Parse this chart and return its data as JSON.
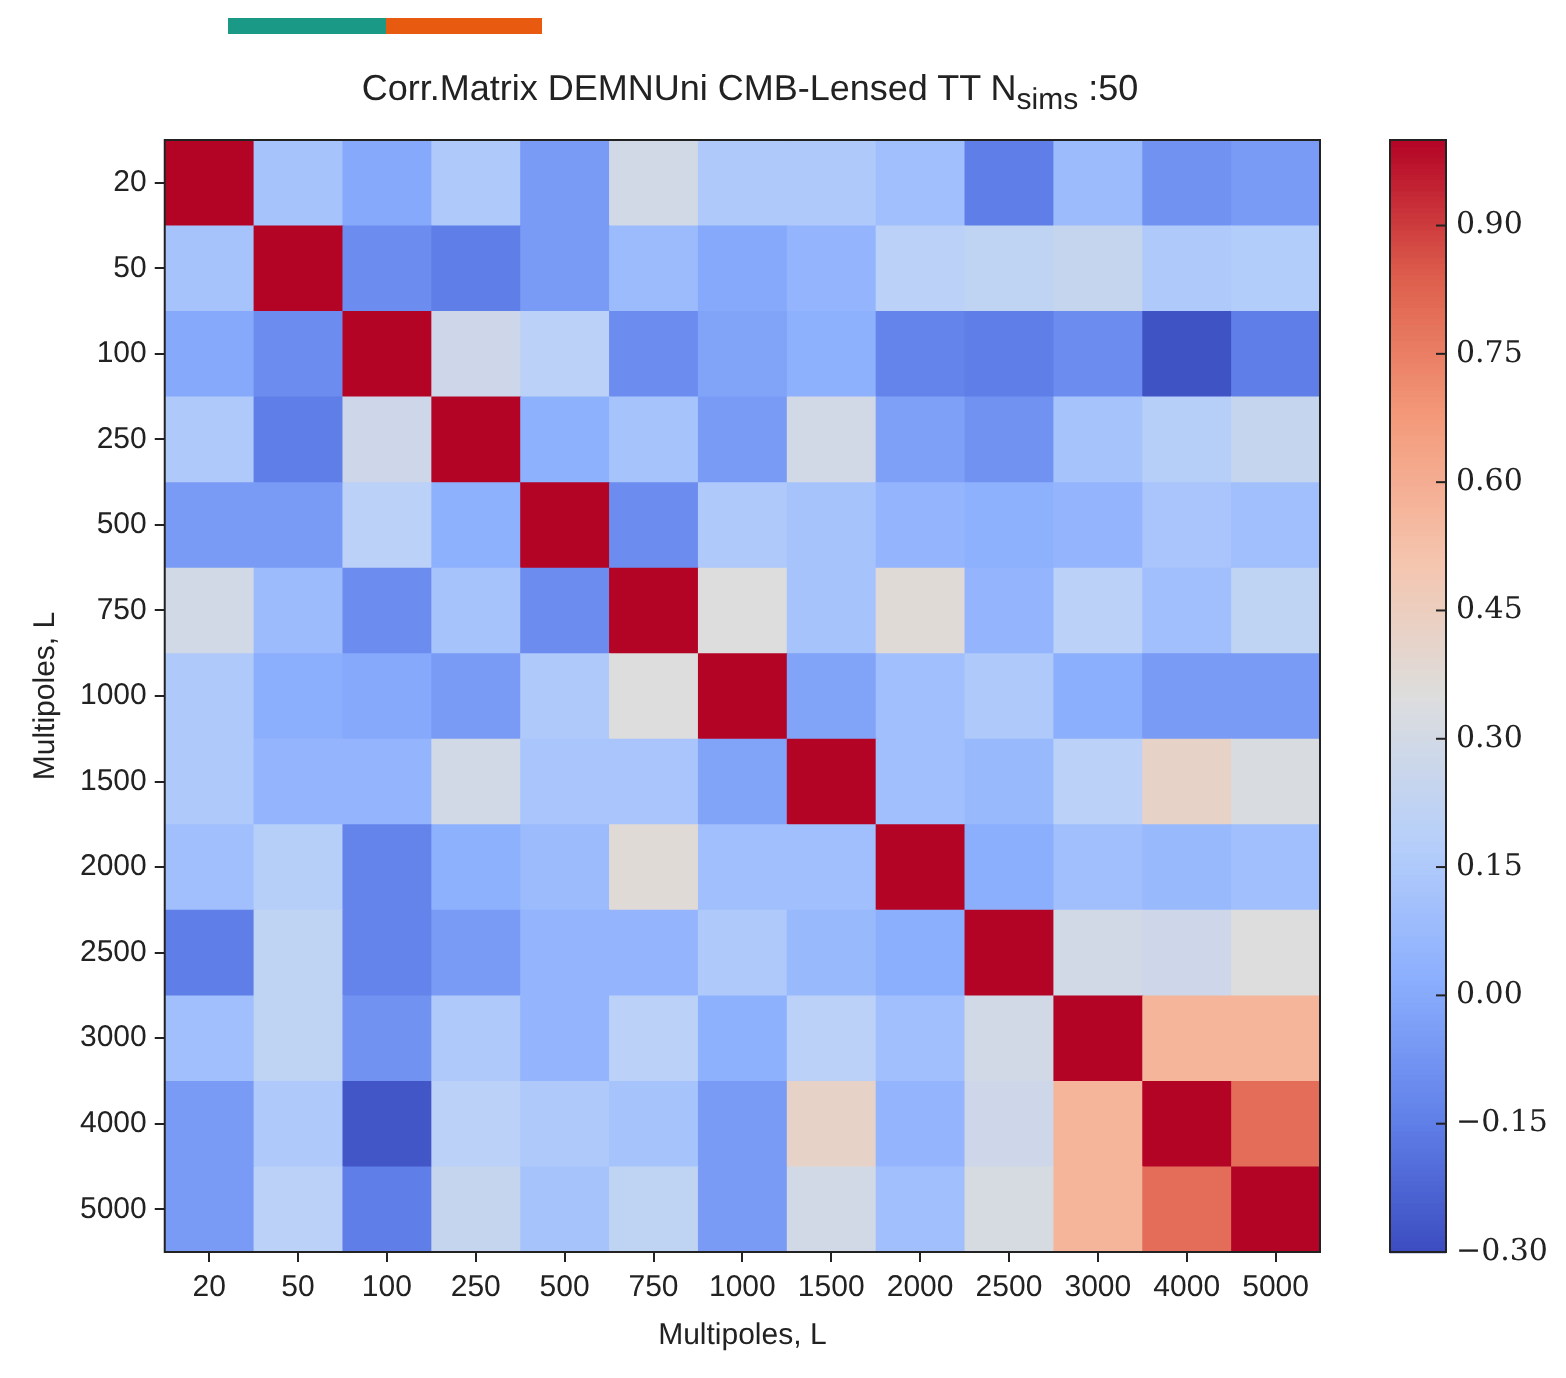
{
  "chart_data": {
    "type": "heatmap",
    "title": "Corr.Matrix DEMNUni CMB-Lensed TT N$_{sims}$ :50",
    "xlabel": "Multipoles, L",
    "ylabel": "Multipoles, L",
    "categories": [
      "20",
      "50",
      "100",
      "250",
      "500",
      "750",
      "1000",
      "1500",
      "2000",
      "2500",
      "3000",
      "4000",
      "5000"
    ],
    "y_categories": [
      "20",
      "50",
      "100",
      "250",
      "500",
      "750",
      "1000",
      "1500",
      "2000",
      "2500",
      "3000",
      "4000",
      "5000"
    ],
    "cells": [
      [
        1,
        0.12,
        0.0,
        0.15,
        -0.05,
        0.3,
        0.15,
        0.15,
        0.1,
        -0.15,
        0.08,
        -0.08,
        -0.05
      ],
      [
        0.12,
        1,
        -0.1,
        -0.15,
        -0.05,
        0.08,
        0.0,
        0.05,
        0.2,
        0.22,
        0.25,
        0.15,
        0.17
      ],
      [
        0.0,
        -0.1,
        1,
        0.28,
        0.2,
        -0.1,
        -0.02,
        0.03,
        -0.13,
        -0.15,
        -0.1,
        -0.28,
        -0.15
      ],
      [
        0.15,
        -0.15,
        0.28,
        1,
        0.03,
        0.12,
        -0.05,
        0.3,
        -0.03,
        -0.08,
        0.12,
        0.18,
        0.25
      ],
      [
        -0.05,
        -0.05,
        0.2,
        0.03,
        1,
        -0.1,
        0.15,
        0.12,
        0.05,
        0.03,
        0.05,
        0.13,
        0.1
      ],
      [
        0.3,
        0.08,
        -0.1,
        0.12,
        -0.1,
        1,
        0.35,
        0.12,
        0.37,
        0.05,
        0.2,
        0.1,
        0.22
      ],
      [
        0.15,
        0.02,
        0.0,
        -0.05,
        0.15,
        0.35,
        1,
        -0.02,
        0.1,
        0.15,
        0.02,
        -0.05,
        -0.05
      ],
      [
        0.15,
        0.05,
        0.05,
        0.3,
        0.13,
        0.13,
        -0.02,
        1,
        0.1,
        0.07,
        0.2,
        0.42,
        0.33
      ],
      [
        0.1,
        0.18,
        -0.13,
        0.03,
        0.08,
        0.37,
        0.1,
        0.1,
        1,
        0.02,
        0.1,
        0.07,
        0.1
      ],
      [
        -0.15,
        0.22,
        -0.13,
        -0.05,
        0.05,
        0.05,
        0.15,
        0.07,
        0.02,
        1,
        0.3,
        0.28,
        0.35
      ],
      [
        0.1,
        0.22,
        -0.08,
        0.15,
        0.05,
        0.2,
        0.03,
        0.2,
        0.1,
        0.3,
        1,
        0.57,
        0.57
      ],
      [
        -0.05,
        0.15,
        -0.27,
        0.2,
        0.15,
        0.12,
        -0.05,
        0.42,
        0.05,
        0.28,
        0.57,
        1,
        0.8
      ],
      [
        -0.05,
        0.2,
        -0.15,
        0.25,
        0.12,
        0.22,
        -0.05,
        0.3,
        0.1,
        0.32,
        0.57,
        0.8,
        1
      ]
    ],
    "clim": [
      -0.3,
      1.0
    ],
    "cticks": [
      {
        "value": -0.3,
        "label": "−0.30"
      },
      {
        "value": -0.15,
        "label": "−0.15"
      },
      {
        "value": 0,
        "label": "0.00"
      },
      {
        "value": 0.15,
        "label": "0.15"
      },
      {
        "value": 0.3,
        "label": "0.30"
      },
      {
        "value": 0.45,
        "label": "0.45"
      },
      {
        "value": 0.6,
        "label": "0.60"
      },
      {
        "value": 0.75,
        "label": "0.75"
      },
      {
        "value": 0.9,
        "label": "0.90"
      }
    ]
  }
}
